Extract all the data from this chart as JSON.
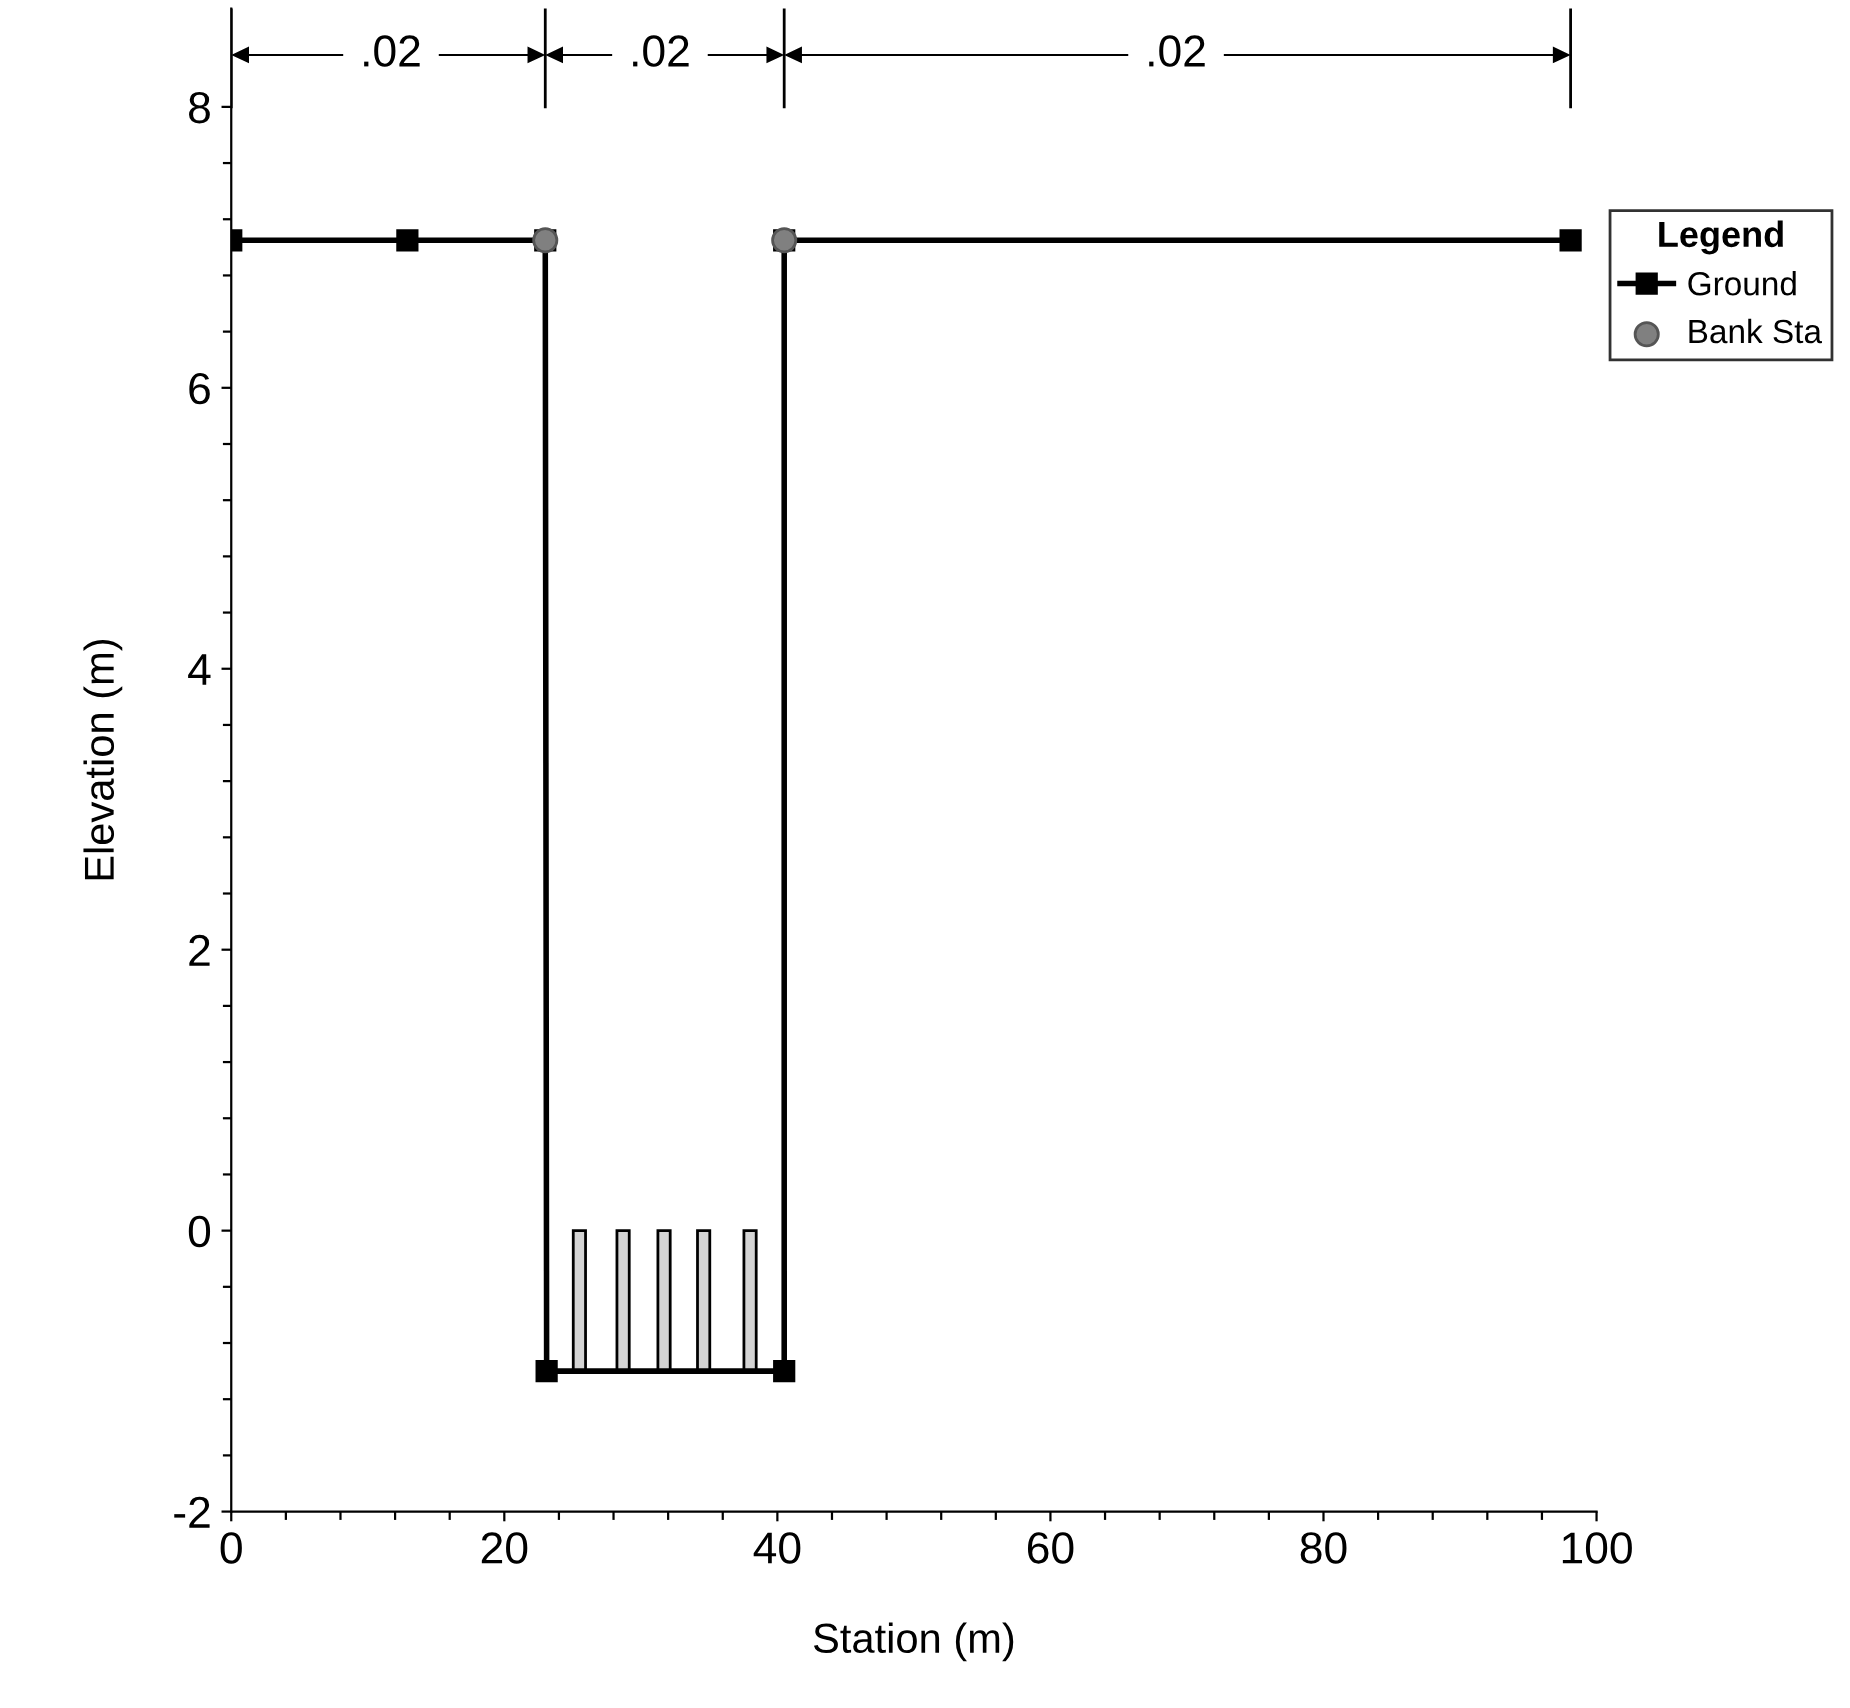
{
  "chart_data": {
    "type": "line",
    "xlabel": "Station (m)",
    "ylabel": "Elevation (m)",
    "legend_title": "Legend",
    "series": [
      {
        "name": "Ground",
        "color": "#000000",
        "marker": "square",
        "x": [
          0,
          12.9,
          23.0,
          23.1,
          40.5,
          40.5,
          98.1
        ],
        "values": [
          7.05,
          7.05,
          7.05,
          -1.0,
          -1.0,
          7.05,
          7.05
        ]
      },
      {
        "name": "Bank Sta",
        "type": "scatter",
        "color": "#808080",
        "marker": "circle",
        "x": [
          23.0,
          40.5
        ],
        "values": [
          7.05,
          7.05
        ]
      },
      {
        "type": "bar",
        "color": "#d4d4d4",
        "x": [
          25.5,
          28.7,
          31.7,
          34.6,
          38.0
        ],
        "base": [
          -1.0,
          -1.0,
          -1.0,
          -1.0,
          -1.0
        ],
        "values": [
          1.0,
          1.0,
          1.0,
          1.0,
          1.0
        ]
      }
    ],
    "annotations": [
      {
        "text": ".02",
        "x": 11.7,
        "y": 8.37
      },
      {
        "text": ".02",
        "x": 31.4,
        "y": 8.37
      },
      {
        "text": ".02",
        "x": 69.2,
        "y": 8.37
      }
    ],
    "xlim": [
      0,
      100
    ],
    "ylim": [
      -2,
      8.7
    ],
    "xticks": [
      0,
      {
        "value": 4,
        "label": null
      },
      {
        "value": 8,
        "label": null
      },
      {
        "value": 12,
        "label": null
      },
      {
        "value": 16,
        "label": null
      },
      20,
      {
        "value": 24,
        "label": null
      },
      {
        "value": 28,
        "label": null
      },
      {
        "value": 32,
        "label": null
      },
      {
        "value": 36,
        "label": null
      },
      40,
      {
        "value": 44,
        "label": null
      },
      {
        "value": 48,
        "label": null
      },
      {
        "value": 52,
        "label": null
      },
      {
        "value": 56,
        "label": null
      },
      60,
      {
        "value": 64,
        "label": null
      },
      {
        "value": 68,
        "label": null
      },
      {
        "value": 72,
        "label": null
      },
      {
        "value": 76,
        "label": null
      },
      80,
      {
        "value": 84,
        "label": null
      },
      {
        "value": 88,
        "label": null
      },
      {
        "value": 92,
        "label": null
      },
      {
        "value": 96,
        "label": null
      },
      100
    ],
    "yticks": [
      -2,
      {
        "value": -1.6,
        "label": null
      },
      {
        "value": -1.2,
        "label": null
      },
      {
        "value": -0.8,
        "label": null
      },
      {
        "value": -0.4,
        "label": null
      },
      0,
      {
        "value": 0.4,
        "label": null
      },
      {
        "value": 0.8,
        "label": null
      },
      {
        "value": 1.2,
        "label": null
      },
      {
        "value": 1.6,
        "label": null
      },
      2,
      {
        "value": 2.4,
        "label": null
      },
      {
        "value": 2.8,
        "label": null
      },
      {
        "value": 3.2,
        "label": null
      },
      {
        "value": 3.6,
        "label": null
      },
      4,
      {
        "value": 4.4,
        "label": null
      },
      {
        "value": 4.8,
        "label": null
      },
      {
        "value": 5.2,
        "label": null
      },
      {
        "value": 5.6,
        "label": null
      },
      6,
      {
        "value": 6.4,
        "label": null
      },
      {
        "value": 6.8,
        "label": null
      },
      {
        "value": 7.2,
        "label": null
      },
      {
        "value": 7.6,
        "label": null
      },
      8
    ],
    "grid": false,
    "legend": "top right"
  }
}
